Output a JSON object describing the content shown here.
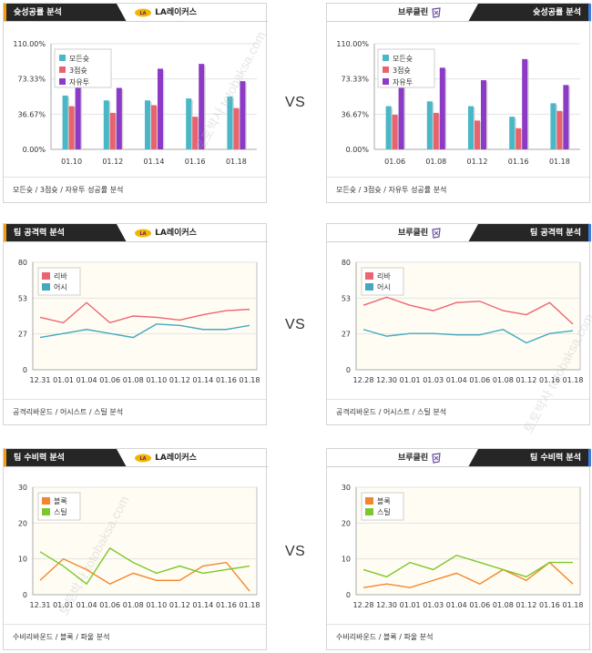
{
  "vs_label": "VS",
  "teams": {
    "home": "LA레이커스",
    "away": "브루클린"
  },
  "watermark": "토토박사 totobaksa.com",
  "colors": {
    "rebound": "#ec6471",
    "assist": "#44a8be",
    "block": "#f2862c",
    "steal": "#7cc72d",
    "all": "#4ab7c7",
    "three": "#e8636e",
    "free": "#8d3bc6"
  },
  "sections": [
    {
      "title": "슛성공률 분석",
      "footer": "모든슛 / 3점슛 / 자유투 성공률 분석"
    },
    {
      "title": "팀 공격력 분석",
      "footer": "공격리바운드 / 어시스트 / 스틸 분석"
    },
    {
      "title": "팀 수비력 분석",
      "footer": "수비리바운드 / 블록 / 파울 분석"
    }
  ],
  "chart_data": [
    {
      "id": "shooting-home",
      "type": "bar",
      "categories": [
        "01.10",
        "01.12",
        "01.14",
        "01.16",
        "01.18"
      ],
      "yticks": [
        "110.00%",
        "73.33%",
        "36.67%",
        "0.00%"
      ],
      "ylim": [
        0,
        110
      ],
      "series": [
        {
          "name": "모든슛",
          "values": [
            56,
            51,
            51,
            53,
            55
          ]
        },
        {
          "name": "3점슛",
          "values": [
            45,
            38,
            46,
            34,
            43
          ]
        },
        {
          "name": "자유투",
          "values": [
            68,
            64,
            84,
            89,
            71
          ]
        }
      ]
    },
    {
      "id": "shooting-away",
      "type": "bar",
      "categories": [
        "01.06",
        "01.08",
        "01.12",
        "01.16",
        "01.18"
      ],
      "yticks": [
        "110.00%",
        "73.33%",
        "36.67%",
        "0.00%"
      ],
      "ylim": [
        0,
        110
      ],
      "series": [
        {
          "name": "모든슛",
          "values": [
            45,
            50,
            45,
            34,
            48
          ]
        },
        {
          "name": "3점슛",
          "values": [
            36,
            38,
            30,
            22,
            40
          ]
        },
        {
          "name": "자유투",
          "values": [
            66,
            85,
            72,
            94,
            67
          ]
        }
      ]
    },
    {
      "id": "offense-home",
      "type": "line",
      "categories": [
        "12.31",
        "01.01",
        "01.04",
        "01.06",
        "01.08",
        "01.10",
        "01.12",
        "01.14",
        "01.16",
        "01.18"
      ],
      "yticks": [
        "80",
        "53",
        "27",
        "0"
      ],
      "ylim": [
        0,
        80
      ],
      "series": [
        {
          "name": "리바",
          "values": [
            39,
            35,
            50,
            35,
            40,
            39,
            37,
            41,
            44,
            45
          ]
        },
        {
          "name": "어시",
          "values": [
            24,
            27,
            30,
            27,
            24,
            34,
            33,
            30,
            30,
            33
          ]
        }
      ]
    },
    {
      "id": "offense-away",
      "type": "line",
      "categories": [
        "12.28",
        "12.30",
        "01.01",
        "01.03",
        "01.04",
        "01.06",
        "01.08",
        "01.12",
        "01.16",
        "01.18"
      ],
      "yticks": [
        "80",
        "53",
        "27",
        "0"
      ],
      "ylim": [
        0,
        80
      ],
      "series": [
        {
          "name": "리바",
          "values": [
            48,
            54,
            48,
            44,
            50,
            51,
            44,
            41,
            50,
            34
          ]
        },
        {
          "name": "어시",
          "values": [
            30,
            25,
            27,
            27,
            26,
            26,
            30,
            20,
            27,
            29
          ]
        }
      ]
    },
    {
      "id": "defense-home",
      "type": "line",
      "categories": [
        "12.31",
        "01.01",
        "01.04",
        "01.06",
        "01.08",
        "01.10",
        "01.12",
        "01.14",
        "01.16",
        "01.18"
      ],
      "yticks": [
        "30",
        "20",
        "10",
        "0"
      ],
      "ylim": [
        0,
        30
      ],
      "series": [
        {
          "name": "블록",
          "values": [
            4,
            10,
            7,
            3,
            6,
            4,
            4,
            8,
            9,
            1
          ]
        },
        {
          "name": "스틸",
          "values": [
            12,
            8,
            3,
            13,
            9,
            6,
            8,
            6,
            7,
            8
          ]
        }
      ]
    },
    {
      "id": "defense-away",
      "type": "line",
      "categories": [
        "12.28",
        "12.30",
        "01.01",
        "01.03",
        "01.04",
        "01.06",
        "01.08",
        "01.12",
        "01.16",
        "01.18"
      ],
      "yticks": [
        "30",
        "20",
        "10",
        "0"
      ],
      "ylim": [
        0,
        30
      ],
      "series": [
        {
          "name": "블록",
          "values": [
            2,
            3,
            2,
            4,
            6,
            3,
            7,
            4,
            9,
            3
          ]
        },
        {
          "name": "스틸",
          "values": [
            7,
            5,
            9,
            7,
            11,
            9,
            7,
            5,
            9,
            9
          ]
        }
      ]
    }
  ]
}
